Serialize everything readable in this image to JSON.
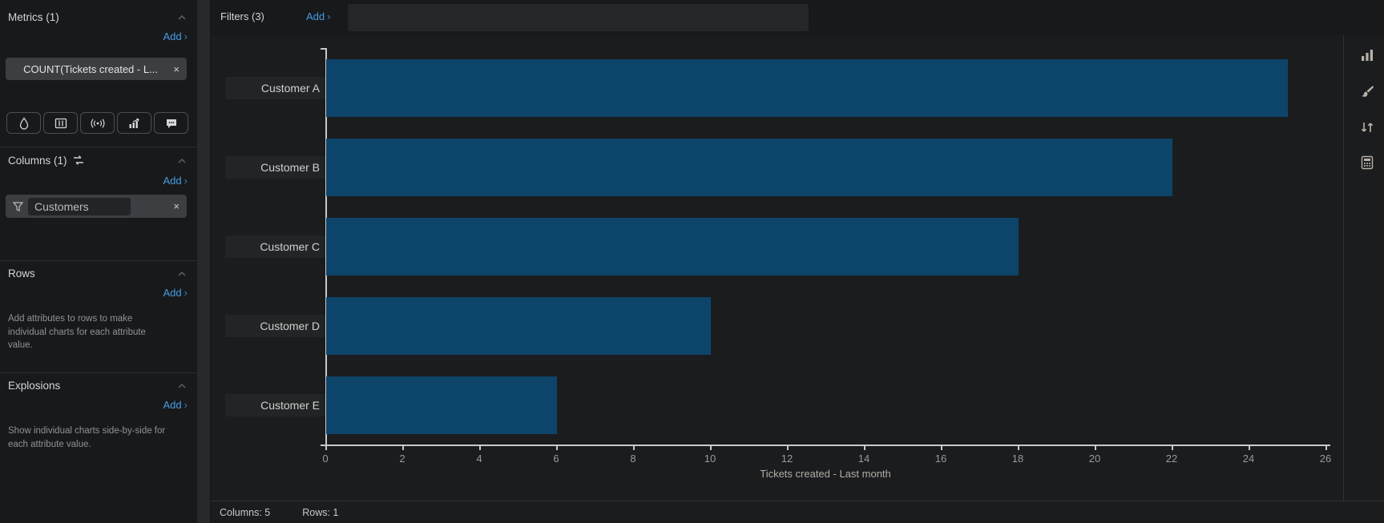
{
  "sidebar": {
    "metrics": {
      "title": "Metrics (1)",
      "add": "Add",
      "chevron": "›",
      "chip": {
        "label": "COUNT(Tickets created - L...",
        "close": "×"
      },
      "toolbar_icons": [
        "droplet-icon",
        "table-columns-icon",
        "broadcast-icon",
        "trend-chart-icon",
        "speech-bubble-icon"
      ]
    },
    "columns": {
      "title": "Columns (1)",
      "add": "Add",
      "chevron": "›",
      "chip": {
        "label": "Customers",
        "close": "×",
        "icon": "funnel-icon"
      }
    },
    "rows": {
      "title": "Rows",
      "add": "Add",
      "chevron": "›",
      "help": "Add attributes to rows to make individual charts for each attribute value."
    },
    "explosions": {
      "title": "Explosions",
      "add": "Add",
      "chevron": "›",
      "help": "Show individual charts side-by-side for each attribute value."
    }
  },
  "topbar": {
    "filters_label": "Filters (3)",
    "add": "Add",
    "chevron": "›"
  },
  "rail_icons": [
    "chart-type-icon",
    "style-brush-icon",
    "sort-icon",
    "calculator-icon"
  ],
  "statusbar": {
    "columns": "Columns: 5",
    "rows": "Rows: 1"
  },
  "colors": {
    "bar_blue": "#0d4469",
    "accent_blue": "#459de6",
    "sidebar_bg": "#18191a",
    "main_bg": "#1b1c1e",
    "chip_bg": "#3b3f42",
    "axis_line": "#c9c9c9",
    "tick_text": "#9a9a9a"
  },
  "chart_data": {
    "type": "bar",
    "orientation": "horizontal",
    "categories": [
      "Customer A",
      "Customer B",
      "Customer C",
      "Customer D",
      "Customer E"
    ],
    "values": [
      25,
      22,
      18,
      10,
      6
    ],
    "title": "",
    "xlabel": "Tickets created - Last month",
    "ylabel": "",
    "xlim": [
      0,
      26
    ],
    "xticks": [
      0,
      2,
      4,
      6,
      8,
      10,
      12,
      14,
      16,
      18,
      20,
      22,
      24,
      26
    ],
    "grid": false,
    "legend": false
  }
}
